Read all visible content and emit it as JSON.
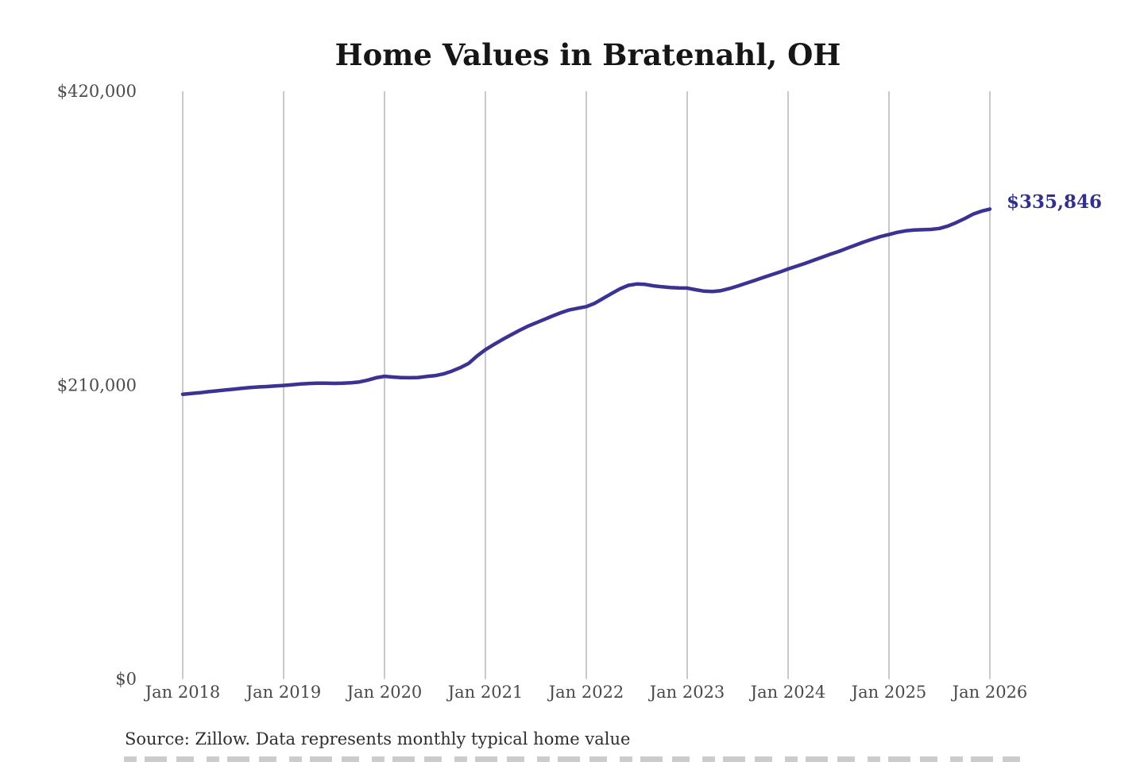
{
  "title": "Home Values in Bratenahl, OH",
  "source_note": "Source: Zillow. Data represents monthly typical home value",
  "annotation": {
    "label": "$335,846"
  },
  "colors": {
    "line": "#3a3393",
    "annotation_text": "#32308f",
    "gridline": "#c9c9c9",
    "title_text": "#161616",
    "axis_text": "#4a4a4a",
    "source_text": "#2e2e2e",
    "background": "#ffffff"
  },
  "y_axis": {
    "tick_labels": [
      "$420,000",
      "$210,000",
      "$0"
    ],
    "tick_values": [
      420000,
      210000,
      0
    ]
  },
  "x_axis": {
    "tick_labels": [
      "Jan 2018",
      "Jan 2019",
      "Jan 2020",
      "Jan 2021",
      "Jan 2022",
      "Jan 2023",
      "Jan 2024",
      "Jan 2025",
      "Jan 2026"
    ]
  },
  "chart_data": {
    "type": "line",
    "title": "Home Values in Bratenahl, OH",
    "xlabel": "",
    "ylabel": "",
    "ylim": [
      0,
      420000
    ],
    "x_start": "Jan 2018",
    "x_end": "Jan 2026",
    "x_interval": "monthly",
    "grid": "vertical-only",
    "legend": "none",
    "final_value": 335846,
    "final_value_label": "$335,846",
    "series": [
      {
        "name": "Monthly typical home value",
        "values": [
          203500,
          204000,
          204600,
          205300,
          205900,
          206500,
          207100,
          207700,
          208300,
          208700,
          209000,
          209400,
          209800,
          210300,
          210800,
          211200,
          211400,
          211400,
          211300,
          211400,
          211700,
          212300,
          213600,
          215300,
          216300,
          215800,
          215400,
          215300,
          215500,
          216200,
          216800,
          218000,
          220000,
          222500,
          225500,
          230800,
          235300,
          239000,
          242500,
          245800,
          249000,
          252000,
          254500,
          257000,
          259500,
          261800,
          263800,
          265000,
          266100,
          268500,
          272000,
          275500,
          278800,
          281300,
          282300,
          282000,
          281000,
          280300,
          279800,
          279500,
          279400,
          278200,
          277200,
          276900,
          277500,
          279000,
          280800,
          282800,
          284800,
          286800,
          288800,
          290800,
          293000,
          295000,
          297000,
          299200,
          301300,
          303500,
          305500,
          307800,
          310000,
          312300,
          314300,
          316200,
          317700,
          319200,
          320300,
          320900,
          321100,
          321300,
          322000,
          323700,
          326200,
          329000,
          332200,
          334300,
          335846
        ]
      }
    ]
  }
}
